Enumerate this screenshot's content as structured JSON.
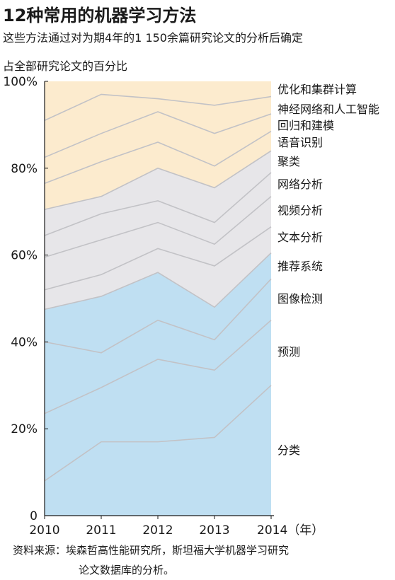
{
  "page": {
    "title": "12种常用的机器学习方法",
    "subtitle": "这些方法通过对为期4年的1 150余篇研究论文的分析后确定",
    "ylabel": "占全部研究论文的百分比",
    "source_line1": "资料来源：埃森哲高性能研究所，斯坦福大学机器学习研究",
    "source_line2": "论文数据库的分析。"
  },
  "chart_data": {
    "type": "area",
    "stacked": true,
    "x": [
      2010,
      2011,
      2012,
      2013,
      2014
    ],
    "x_tick_labels": [
      "2010",
      "2011",
      "2012",
      "2013",
      "2014（年）"
    ],
    "y_tick_labels": [
      "0",
      "20%",
      "40%",
      "60%",
      "80%",
      "100%"
    ],
    "ylim": [
      0,
      100
    ],
    "grid": false,
    "legend": "right",
    "boundaries": [
      [
        8,
        17,
        17,
        18,
        30
      ],
      [
        23.5,
        29.5,
        36,
        33.5,
        45
      ],
      [
        40,
        37.5,
        45,
        40.5,
        54.5
      ],
      [
        47.5,
        50.5,
        56,
        48,
        60.5
      ],
      [
        52,
        55.5,
        61.5,
        57.5,
        66.5
      ],
      [
        59.5,
        63.5,
        67.5,
        62.5,
        73.5
      ],
      [
        64.5,
        69.5,
        72.5,
        67.5,
        79
      ],
      [
        70.5,
        73.5,
        80,
        75.5,
        84
      ],
      [
        76.5,
        81.5,
        86,
        80.5,
        88.5
      ],
      [
        82.5,
        88,
        93,
        88,
        92.5
      ],
      [
        91,
        97,
        96,
        94.5,
        96.5
      ],
      [
        100,
        100,
        100,
        100,
        100
      ]
    ],
    "series": [
      {
        "name": "分类",
        "color": "#bfdff2"
      },
      {
        "name": "预测",
        "color": "#bfdff2"
      },
      {
        "name": "图像检测",
        "color": "#bfdff2"
      },
      {
        "name": "推荐系统",
        "color": "#bfdff2"
      },
      {
        "name": "文本分析",
        "color": "#e7e6e9"
      },
      {
        "name": "视频分析",
        "color": "#e7e6e9"
      },
      {
        "name": "网络分析",
        "color": "#e7e6e9"
      },
      {
        "name": "聚类",
        "color": "#e7e6e9"
      },
      {
        "name": "语音识别",
        "color": "#fcebce"
      },
      {
        "name": "回归和建模",
        "color": "#fcebce"
      },
      {
        "name": "神经网络和人工智能",
        "color": "#fcebce"
      },
      {
        "name": "优化和集群计算",
        "color": "#fcebce"
      }
    ]
  }
}
